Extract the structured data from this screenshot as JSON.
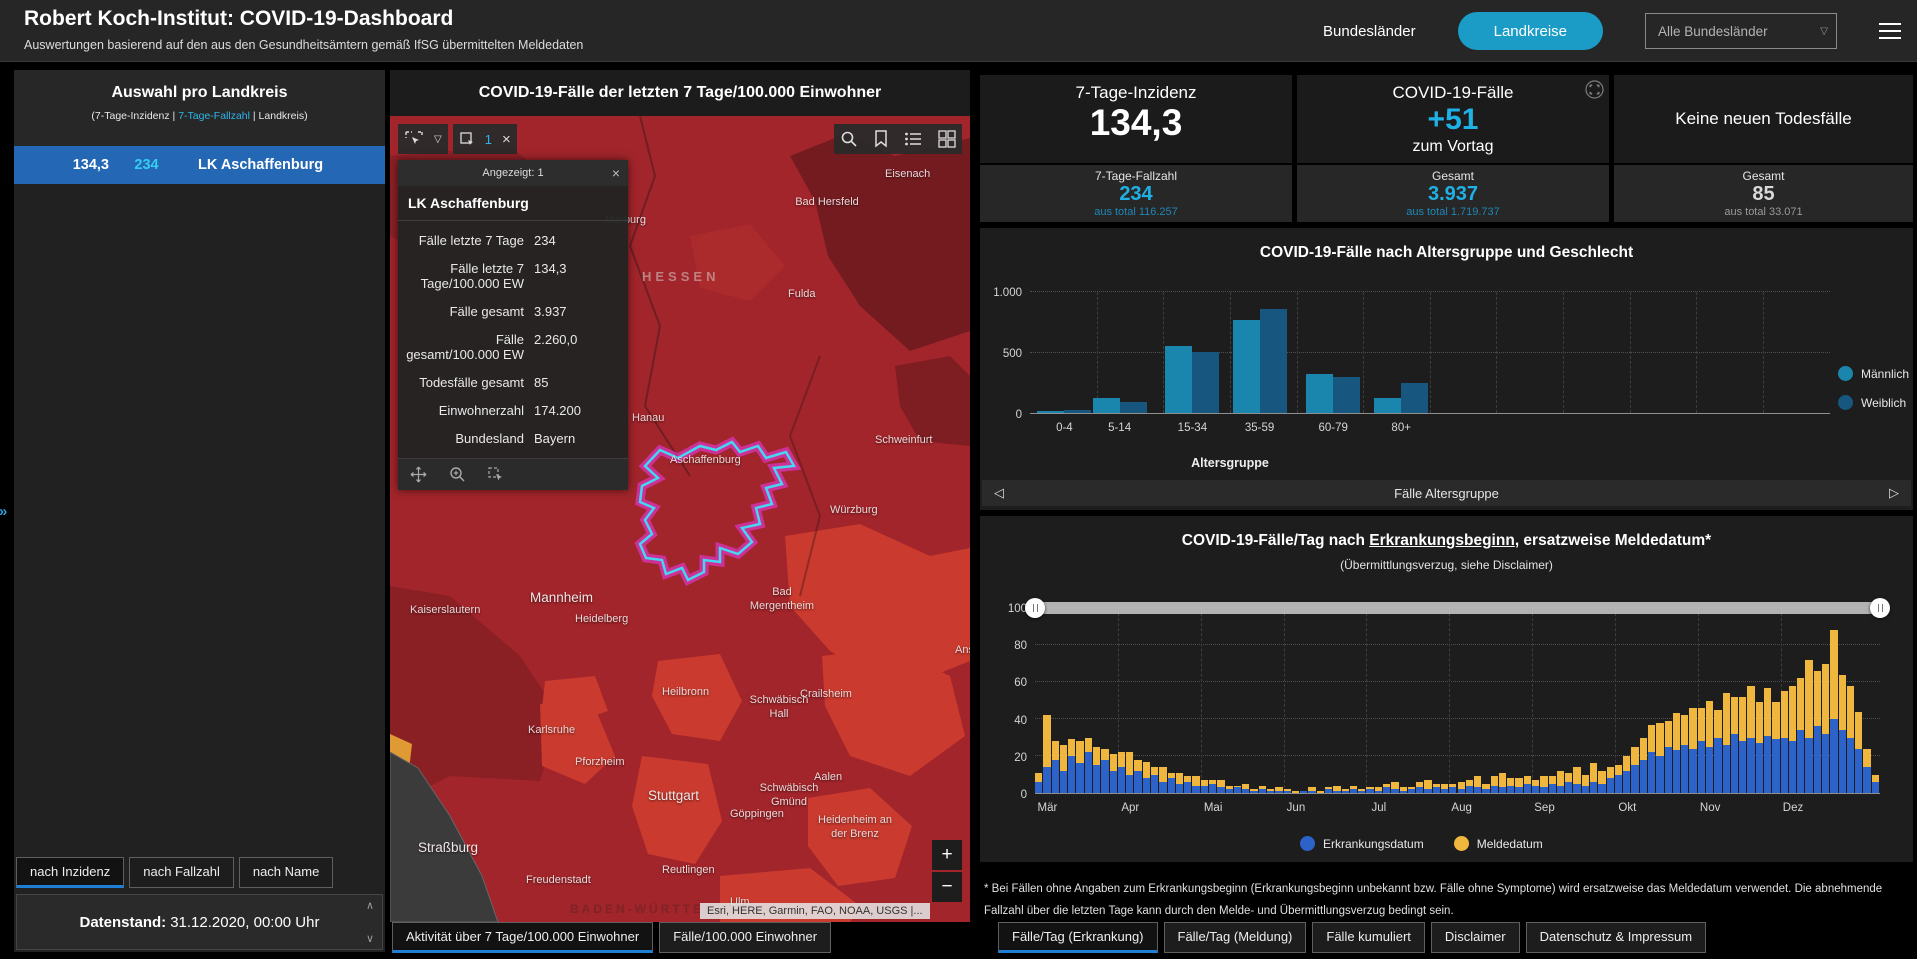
{
  "header": {
    "title": "Robert Koch-Institut: COVID-19-Dashboard",
    "subtitle": "Auswertungen basierend auf den aus den Gesundheitsämtern gemäß IfSG übermittelten Meldedaten",
    "nav": [
      {
        "label": "Bundesländer",
        "active": false
      },
      {
        "label": "Landkreise",
        "active": true
      }
    ],
    "region_filter": "Alle Bundesländer"
  },
  "sidebar": {
    "title": "Auswahl pro Landkreis",
    "subtitle_prefix": "(7-Tage-Inzidenz | ",
    "subtitle_highlight": "7-Tage-Fallzahl",
    "subtitle_suffix": " | Landkreis)",
    "selected_row": {
      "incidence": "134,3",
      "cases_7d": "234",
      "name": "LK Aschaffenburg"
    },
    "tabs": [
      {
        "label": "nach Inzidenz",
        "active": true
      },
      {
        "label": "nach Fallzahl",
        "active": false
      },
      {
        "label": "nach Name",
        "active": false
      }
    ],
    "datenstand_label": "Datenstand:",
    "datenstand_value": "31.12.2020, 00:00 Uhr"
  },
  "map": {
    "title": "COVID-19-Fälle der letzten 7 Tage/100.000 Einwohner",
    "selection_count": "1",
    "popup": {
      "header": "Angezeigt: 1",
      "title": "LK Aschaffenburg",
      "rows": [
        {
          "label": "Fälle letzte 7 Tage",
          "value": "234"
        },
        {
          "label": "Fälle letzte 7 Tage/100.000 EW",
          "value": "134,3"
        },
        {
          "label": "Fälle gesamt",
          "value": "3.937"
        },
        {
          "label": "Fälle gesamt/100.000 EW",
          "value": "2.260,0"
        },
        {
          "label": "Todesfälle gesamt",
          "value": "85"
        },
        {
          "label": "Einwohnerzahl",
          "value": "174.200"
        },
        {
          "label": "Bundesland",
          "value": "Bayern"
        }
      ]
    },
    "attribution": "Esri, HERE, Garmin, FAO, NOAA, USGS |...",
    "zoom_in": "+",
    "zoom_out": "−",
    "tabs": [
      {
        "label": "Aktivität über 7 Tage/100.000 Einwohner",
        "active": true
      },
      {
        "label": "Fälle/100.000 Einwohner",
        "active": false
      }
    ],
    "city_labels": [
      "Marburg",
      "Eisenach",
      "Bad Hersfeld",
      "Fulda",
      "Hanau",
      "Aschaffenburg",
      "Schweinfurt",
      "Würzburg",
      "Bad Mergentheim",
      "Mannheim",
      "Kaiserslautern",
      "Heidelberg",
      "Ans",
      "Heilbronn",
      "Schwäbisch Hall",
      "Crailsheim",
      "Karlsruhe",
      "Pforzheim",
      "Stuttgart",
      "Schwäbisch Gmünd",
      "Göppingen",
      "Aalen",
      "Heidenheim an der Brenz",
      "Straßburg",
      "Freudenstadt",
      "Reutlingen",
      "Ulm"
    ],
    "region_labels": [
      "HESSEN",
      "BADEN-WÜRTTEMBERG"
    ],
    "highlight_colors": {
      "outline": "#46d6f2",
      "glow": "#e73bdf"
    }
  },
  "stats": {
    "card_incidence": {
      "title": "7-Tage-Inzidenz",
      "value": "134,3",
      "sub_label": "7-Tage-Fallzahl",
      "sub_value": "234",
      "sub_total": "aus total 116.257"
    },
    "card_cases": {
      "title": "COVID-19-Fälle",
      "value": "+51",
      "caption": "zum Vortag",
      "sub_label": "Gesamt",
      "sub_value": "3.937",
      "sub_total": "aus total 1.719.737"
    },
    "card_deaths": {
      "title": "Keine neuen Todesfälle",
      "sub_label": "Gesamt",
      "sub_value": "85",
      "sub_total": "aus total 33.071"
    }
  },
  "chart_data": [
    {
      "type": "bar",
      "title": "COVID-19-Fälle nach Altersgruppe und Geschlecht",
      "categories": [
        "0-4",
        "5-14",
        "15-34",
        "35-59",
        "60-79",
        "80+"
      ],
      "series": [
        {
          "name": "Männlich",
          "color": "#1a86ae",
          "values": [
            20,
            120,
            555,
            770,
            320,
            125
          ]
        },
        {
          "name": "Weiblich",
          "color": "#16567f",
          "values": [
            25,
            95,
            505,
            860,
            300,
            245
          ]
        }
      ],
      "ylim": [
        0,
        1000
      ],
      "yticks": [
        "0",
        "500",
        "1.000"
      ],
      "xlabel": "Altersgruppe",
      "pager_label": "Fälle Altersgruppe",
      "legend_position": "right",
      "grid": true
    },
    {
      "type": "bar-stacked",
      "title_prefix": "COVID-19-Fälle/Tag nach ",
      "title_underline": "Erkrankungsbeginn",
      "title_suffix": ", ersatzweise Meldedatum*",
      "subtitle": "(Übermittlungsverzug, siehe Disclaimer)",
      "x_months": [
        "Mär",
        "Apr",
        "Mai",
        "Jun",
        "Jul",
        "Aug",
        "Sep",
        "Okt",
        "Nov",
        "Dez"
      ],
      "ylim": [
        0,
        100
      ],
      "yticks": [
        0,
        20,
        40,
        60,
        80,
        100
      ],
      "legend_position": "bottom",
      "grid": true,
      "series": [
        {
          "name": "Erkrankungsdatum",
          "color": "#2d63c8",
          "values": [
            6,
            14,
            18,
            12,
            20,
            16,
            22,
            15,
            18,
            12,
            14,
            10,
            12,
            8,
            10,
            6,
            8,
            5,
            6,
            4,
            4,
            5,
            3,
            2,
            3,
            2,
            1,
            2,
            1,
            1,
            1,
            0,
            1,
            1,
            0,
            2,
            1,
            1,
            2,
            1,
            2,
            1,
            3,
            2,
            1,
            2,
            3,
            2,
            3,
            2,
            3,
            2,
            4,
            3,
            2,
            4,
            3,
            4,
            3,
            5,
            4,
            3,
            5,
            4,
            6,
            5,
            4,
            6,
            5,
            8,
            10,
            12,
            15,
            18,
            22,
            20,
            25,
            23,
            26,
            24,
            28,
            25,
            30,
            26,
            32,
            28,
            30,
            27,
            31,
            29,
            30,
            28,
            34,
            30,
            36,
            32,
            40,
            34,
            30,
            24,
            14,
            6
          ]
        },
        {
          "name": "Meldedatum",
          "color": "#efb73e",
          "values": [
            5,
            28,
            10,
            14,
            9,
            12,
            8,
            10,
            6,
            9,
            8,
            12,
            6,
            9,
            4,
            8,
            3,
            6,
            3,
            5,
            3,
            2,
            4,
            2,
            1,
            3,
            1,
            2,
            1,
            2,
            1,
            1,
            0,
            2,
            1,
            1,
            3,
            1,
            2,
            1,
            1,
            2,
            2,
            4,
            2,
            1,
            3,
            5,
            2,
            3,
            2,
            4,
            3,
            6,
            3,
            5,
            8,
            4,
            5,
            4,
            3,
            6,
            4,
            8,
            5,
            9,
            6,
            10,
            7,
            6,
            5,
            8,
            10,
            12,
            15,
            18,
            14,
            20,
            16,
            22,
            18,
            25,
            15,
            28,
            20,
            24,
            28,
            22,
            26,
            20,
            25,
            30,
            28,
            42,
            30,
            38,
            48,
            30,
            28,
            20,
            10,
            4
          ]
        }
      ]
    }
  ],
  "footer": {
    "disclaimer": "* Bei Fällen ohne Angaben zum Erkrankungsbeginn (Erkrankungsbeginn unbekannt bzw. Fälle ohne Symptome) wird ersatzweise das Meldedatum verwendet. Die abnehmende Fallzahl über die letzten Tage kann durch den Melde- und Übermittlungsverzug bedingt sein.",
    "tabs": [
      {
        "label": "Fälle/Tag (Erkrankung)",
        "active": true
      },
      {
        "label": "Fälle/Tag (Meldung)",
        "active": false
      },
      {
        "label": "Fälle kumuliert",
        "active": false
      },
      {
        "label": "Disclaimer",
        "active": false
      },
      {
        "label": "Datenschutz & Impressum",
        "active": false
      }
    ]
  },
  "icons": {
    "dropdown": "▽",
    "close": "×",
    "up": "∧",
    "down": "∨",
    "left": "◁",
    "right": "▷",
    "collapse": "»"
  }
}
